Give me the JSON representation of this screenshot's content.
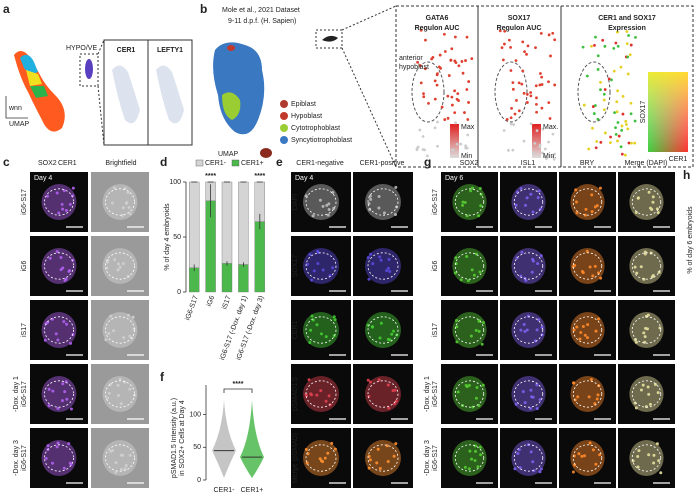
{
  "panels": {
    "a": {
      "label": "a",
      "cluster": "HYPO/VE",
      "genes": [
        "CER1",
        "LEFTY1"
      ],
      "axis": [
        "wnn",
        "UMAP"
      ]
    },
    "b": {
      "label": "b",
      "title": "Mole et al., 2021 Dataset",
      "subtitle": "9-11 d.p.f. (H. Sapien)",
      "umap": "UMAP",
      "legend": [
        {
          "name": "Epiblast",
          "color": "#b03a2e"
        },
        {
          "name": "Hypoblast",
          "color": "#c0392b"
        },
        {
          "name": "Cytotrophoblast",
          "color": "#9acd32"
        },
        {
          "name": "Syncytiotrophoblast",
          "color": "#3a78c2"
        }
      ],
      "annotation": [
        "anterior",
        "hypoblast"
      ],
      "subpanels": [
        [
          "GATA6",
          "Regulon AUC"
        ],
        [
          "SOX17",
          "Regulon AUC"
        ],
        [
          "CER1 and SOX17",
          "Expression"
        ]
      ],
      "scale1": [
        "Max",
        "Min"
      ],
      "scale2": [
        "Max.",
        "Min."
      ],
      "colorbar": [
        "SOX17",
        "CER1"
      ]
    },
    "c": {
      "label": "c",
      "channels": [
        {
          "name": "SOX2",
          "color": "#c77dff"
        },
        {
          "name": "CER1",
          "color": "#66dd44"
        }
      ],
      "brightfield": "Brightfield",
      "day": "Day 4",
      "rows": [
        {
          "line": "iG6-S17"
        },
        {
          "line": "iG6"
        },
        {
          "line": "iS17"
        },
        {
          "line": "iG6-S17",
          "condition": "-Dox. day 1"
        },
        {
          "line": "iG6-S17",
          "condition": "-Dox. day 3"
        }
      ]
    },
    "d": {
      "label": "d",
      "type": "bar",
      "stacked": true,
      "ylabel": "% of day 4 embryoids",
      "categories": [
        "iG6-S17",
        "iG6",
        "iS17",
        "iG6-S17 (-Dox. day 1)",
        "iG6-S17 (-Dox. day 3)"
      ],
      "series": [
        {
          "name": "CER1-",
          "color": "#d4d4d4",
          "values": [
            78,
            17,
            74,
            75,
            36
          ]
        },
        {
          "name": "CER1+",
          "color": "#4cb84c",
          "values": [
            22,
            83,
            26,
            25,
            64
          ],
          "errors": [
            3,
            15,
            2,
            2,
            7
          ]
        }
      ],
      "ylim": [
        0,
        100
      ],
      "yticks": [
        0,
        50,
        100
      ],
      "significance": [
        null,
        "****",
        null,
        null,
        "****"
      ]
    },
    "e": {
      "label": "e",
      "columns": [
        "CER1-negative",
        "CER1-positive"
      ],
      "day": "Day 4",
      "rows": [
        {
          "name": "DAPI",
          "color": "#ffffff"
        },
        {
          "name": "SOX17",
          "color": "#7b68ee"
        },
        {
          "name": "CER1",
          "color": "#66dd44"
        },
        {
          "name": "pSMAD1.5",
          "color": "#ff5a5a"
        },
        {
          "name": "Merge (pSMAD)",
          "color": "#ffa040"
        }
      ]
    },
    "f": {
      "label": "f",
      "type": "violin",
      "ylabel": [
        "pSMAD1.5 Intensity (a.u.)",
        "in SOX2+ Cells at Day 4"
      ],
      "categories": [
        "CER1-",
        "CER1+"
      ],
      "medians": [
        45,
        35
      ],
      "colors": [
        "#bbbbbb",
        "#4cb84c"
      ],
      "ylim": [
        0,
        130
      ],
      "yticks": [
        0,
        50,
        100
      ],
      "significance": "****"
    },
    "g": {
      "label": "g",
      "channels": [
        {
          "name": "SOX2",
          "color": "#66dd44"
        },
        {
          "name": "ISL1",
          "color": "#9a7bff"
        },
        {
          "name": "BRY",
          "color": "#ff9a3c"
        },
        {
          "name": "Merge (DAPI)",
          "color": "#ffffff"
        }
      ],
      "day": "Day 6",
      "rows": [
        {
          "line": "iG6-S17"
        },
        {
          "line": "iG6"
        },
        {
          "line": "iS17"
        },
        {
          "line": "iG6-S17",
          "condition": "-Dox. day 1"
        },
        {
          "line": "iG6-S17",
          "condition": "-Dox. day 3"
        }
      ]
    },
    "h": {
      "label": "h",
      "ylabel": "% of day 6 embryoids"
    }
  }
}
